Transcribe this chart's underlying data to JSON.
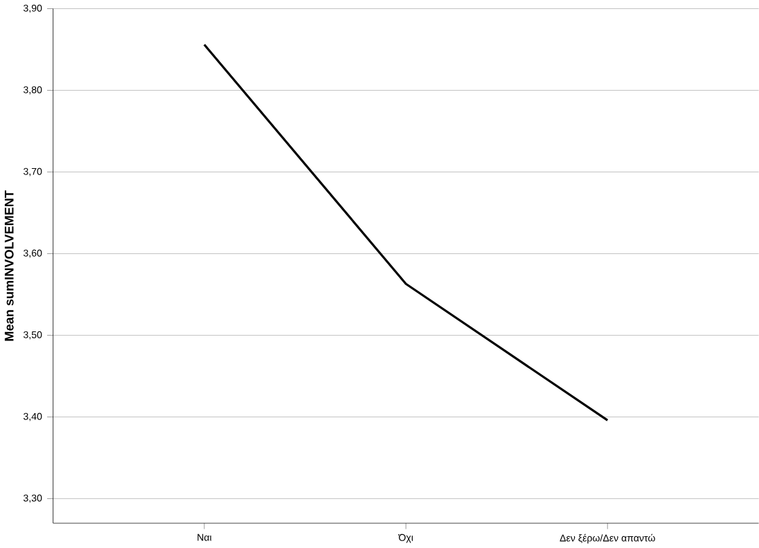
{
  "chart_data": {
    "type": "line",
    "ylabel": "Mean sumINVOLVEMENT",
    "categories": [
      "Ναι",
      "Όχι",
      "Δεν ξέρω/Δεν απαντώ"
    ],
    "series": [
      {
        "color": "#000000",
        "values": [
          3.856,
          3.563,
          3.396
        ]
      }
    ],
    "ylim": [
      3.27,
      3.9
    ],
    "yticks": [
      {
        "value": 3.3,
        "label": "3,30"
      },
      {
        "value": 3.4,
        "label": "3,40"
      },
      {
        "value": 3.5,
        "label": "3,50"
      },
      {
        "value": 3.6,
        "label": "3,60"
      },
      {
        "value": 3.7,
        "label": "3,70"
      },
      {
        "value": 3.8,
        "label": "3,80"
      },
      {
        "value": 3.9,
        "label": "3,90"
      }
    ],
    "grid": "y",
    "marker": "none",
    "line_style": "solid"
  }
}
